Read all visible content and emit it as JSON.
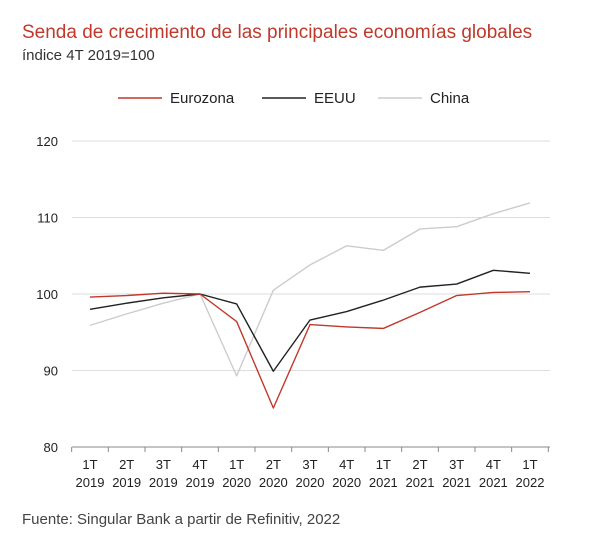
{
  "title": "Senda de crecimiento de las principales economías globales",
  "subtitle": "índice 4T 2019=100",
  "source": "Fuente: Singular Bank a partir de Refinitiv, 2022",
  "chart_data": {
    "type": "line",
    "title": "Senda de crecimiento de las principales economías globales",
    "subtitle": "índice 4T 2019=100",
    "ylim": [
      80,
      120
    ],
    "yticks": [
      80,
      90,
      100,
      110,
      120
    ],
    "grid": true,
    "legend_position": "top",
    "categories": [
      [
        "1T",
        "2019"
      ],
      [
        "2T",
        "2019"
      ],
      [
        "3T",
        "2019"
      ],
      [
        "4T",
        "2019"
      ],
      [
        "1T",
        "2020"
      ],
      [
        "2T",
        "2020"
      ],
      [
        "3T",
        "2020"
      ],
      [
        "4T",
        "2020"
      ],
      [
        "1T",
        "2021"
      ],
      [
        "2T",
        "2021"
      ],
      [
        "3T",
        "2021"
      ],
      [
        "4T",
        "2021"
      ],
      [
        "1T",
        "2022"
      ]
    ],
    "series": [
      {
        "name": "Eurozona",
        "color": "#c0392b",
        "values": [
          99.6,
          99.8,
          100.1,
          100.0,
          96.4,
          85.1,
          96.0,
          95.7,
          95.5,
          97.6,
          99.8,
          100.2,
          100.3
        ]
      },
      {
        "name": "EEUU",
        "color": "#222222",
        "values": [
          98.0,
          98.8,
          99.5,
          100.0,
          98.7,
          89.9,
          96.6,
          97.7,
          99.2,
          100.9,
          101.3,
          103.1,
          102.7
        ]
      },
      {
        "name": "China",
        "color": "#cccccc",
        "values": [
          95.9,
          97.4,
          98.8,
          100.0,
          89.3,
          100.5,
          103.8,
          106.3,
          105.7,
          108.5,
          108.8,
          110.5,
          111.9
        ]
      }
    ]
  }
}
